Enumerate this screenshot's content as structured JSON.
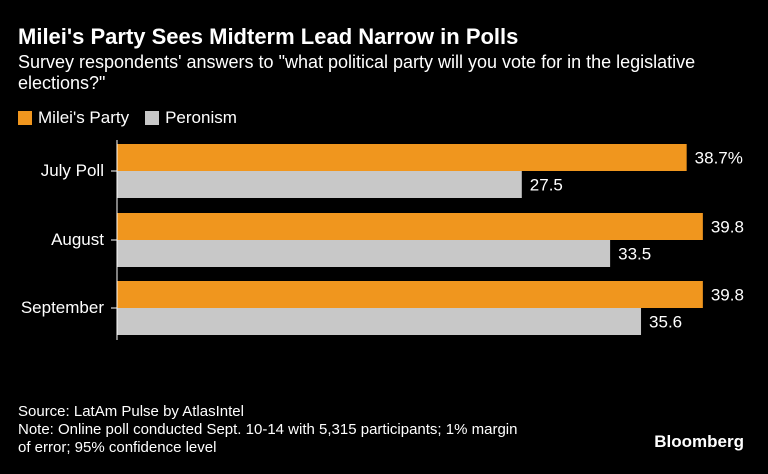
{
  "header": {
    "title": "Milei's Party Sees Midterm Lead Narrow in Polls",
    "subtitle": "Survey respondents' answers to \"what political party will you vote for in the legislative elections?\""
  },
  "legend": [
    {
      "label": "Milei's Party",
      "color": "#f0961e"
    },
    {
      "label": "Peronism",
      "color": "#c8c8c8"
    }
  ],
  "chart_data": {
    "type": "bar",
    "orientation": "horizontal",
    "categories": [
      "July Poll",
      "August",
      "September"
    ],
    "series": [
      {
        "name": "Milei's Party",
        "values": [
          38.7,
          39.8,
          39.8
        ],
        "labels": [
          "38.7%",
          "39.8",
          "39.8"
        ],
        "color": "#f0961e"
      },
      {
        "name": "Peronism",
        "values": [
          27.5,
          33.5,
          35.6
        ],
        "labels": [
          "27.5",
          "33.5",
          "35.6"
        ],
        "color": "#c8c8c8"
      }
    ],
    "xlim": [
      0,
      45
    ],
    "grid": false,
    "legend_position": "top-left"
  },
  "footer": {
    "source": "Source: LatAm Pulse by AtlasIntel",
    "note_line1": "Note: Online poll conducted Sept. 10-14 with 5,315 participants; 1% margin",
    "note_line2": "of error; 95% confidence level"
  },
  "brand": "Bloomberg"
}
